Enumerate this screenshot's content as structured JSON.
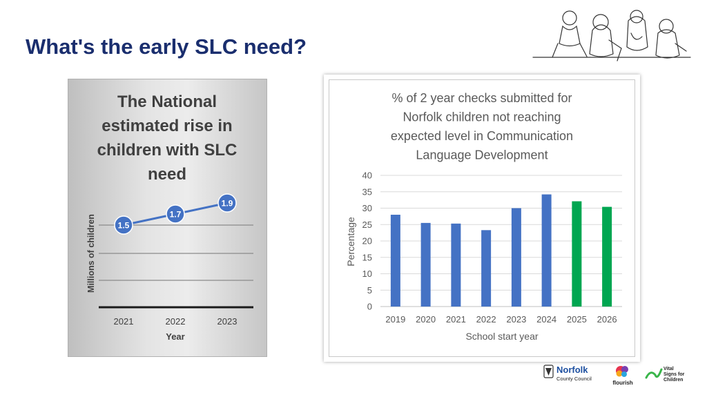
{
  "page": {
    "title": "What's the early SLC need?"
  },
  "logos": {
    "norfolk_line1": "Norfolk",
    "norfolk_line2": "County Council",
    "flourish": "flourish",
    "vital_line1": "Vital",
    "vital_line2": "Signs for",
    "vital_line3": "Children"
  },
  "chart_data": [
    {
      "type": "line",
      "title_lines": [
        "The National",
        "estimated rise in",
        "children with SLC",
        "need"
      ],
      "xlabel": "Year",
      "ylabel": "Millions of children",
      "categories": [
        "2021",
        "2022",
        "2023"
      ],
      "values": [
        1.5,
        1.7,
        1.9
      ],
      "data_labels": [
        "1.5",
        "1.7",
        "1.9"
      ],
      "ylim": [
        0,
        2.2
      ],
      "grid": true,
      "colors": {
        "line": "#4472c4"
      }
    },
    {
      "type": "bar",
      "title_lines": [
        "% of 2 year checks submitted for",
        "Norfolk children not reaching",
        "expected level in Communication",
        "Language Development"
      ],
      "xlabel": "School start year",
      "ylabel": "Percentage",
      "categories": [
        "2019",
        "2020",
        "2021",
        "2022",
        "2023",
        "2024",
        "2025",
        "2026"
      ],
      "values": [
        28,
        25.5,
        25.3,
        23.3,
        30,
        34.2,
        32.1,
        30.4
      ],
      "bar_colors": [
        "#4472c4",
        "#4472c4",
        "#4472c4",
        "#4472c4",
        "#4472c4",
        "#4472c4",
        "#00a651",
        "#00a651"
      ],
      "ylim": [
        0,
        40
      ],
      "yticks": [
        "0",
        "5",
        "10",
        "15",
        "20",
        "25",
        "30",
        "35",
        "40"
      ],
      "grid": true
    }
  ]
}
